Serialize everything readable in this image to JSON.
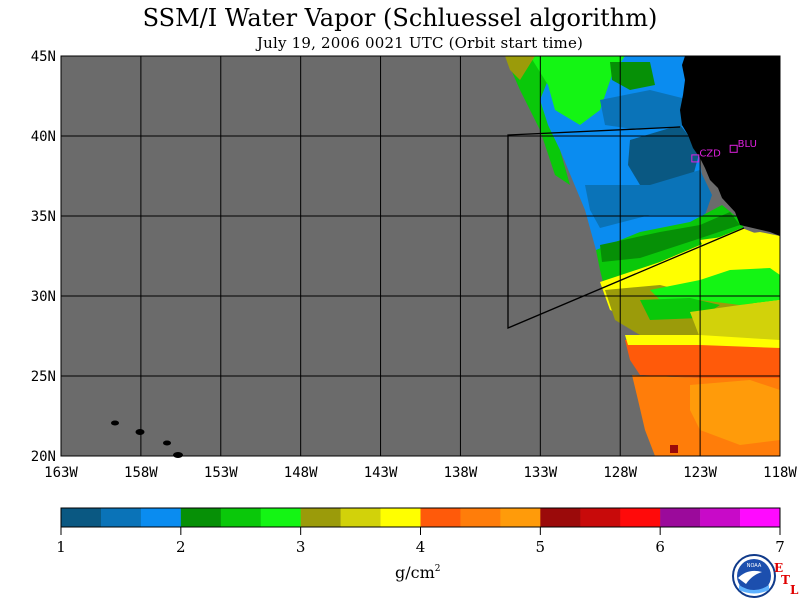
{
  "title": "SSM/I Water Vapor (Schluessel algorithm)",
  "subtitle": "July 19, 2006  0021 UTC  (Orbit start time)",
  "map": {
    "lon_range": [
      -163,
      -118
    ],
    "lat_range": [
      20,
      45
    ],
    "lon_ticks": [
      "163W",
      "158W",
      "153W",
      "148W",
      "143W",
      "138W",
      "133W",
      "128W",
      "123W",
      "118W"
    ],
    "lat_ticks": [
      "45N",
      "40N",
      "35N",
      "30N",
      "25N",
      "20N"
    ],
    "no_data_color": "#6b6b6b",
    "land_color": "#000000",
    "sites": [
      {
        "name": "CZD",
        "lon": -123.3,
        "lat": 38.6
      },
      {
        "name": "BLU",
        "lon": -120.9,
        "lat": 39.2
      }
    ]
  },
  "colorbar": {
    "ticks": [
      "1",
      "2",
      "3",
      "4",
      "5",
      "6",
      "7"
    ],
    "colors": [
      "#0a5882",
      "#0a73b8",
      "#0a8cf0",
      "#069006",
      "#0ac80a",
      "#14f514",
      "#9b9b0a",
      "#d2d20a",
      "#ffff00",
      "#ff5a0a",
      "#ff7d0a",
      "#ff9b0a",
      "#9b0a0a",
      "#c80a0a",
      "#ff0a0a",
      "#9b0a9b",
      "#c80ac8",
      "#ff0aff"
    ],
    "unit_base": "g/cm",
    "unit_sup": "2"
  },
  "logo": {
    "text": "NOAA",
    "etl_letters": [
      "E",
      "T",
      "L"
    ]
  }
}
